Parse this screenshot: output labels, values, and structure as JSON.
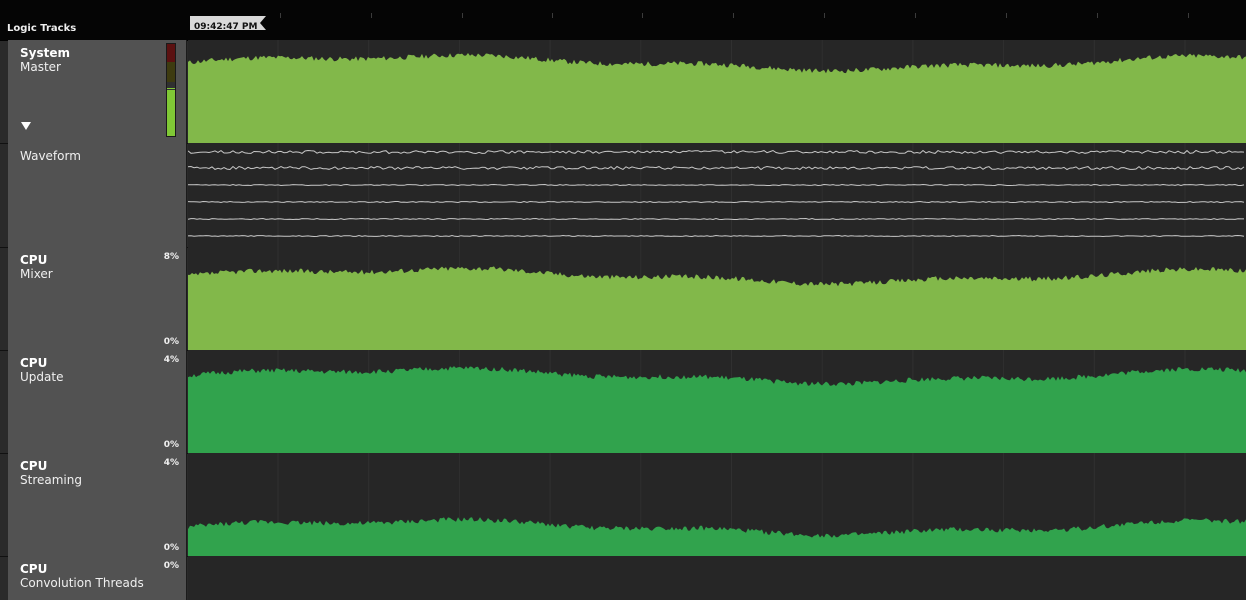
{
  "header": {
    "label": "Logic Tracks"
  },
  "playhead": {
    "time": "09:42:47 PM"
  },
  "tracks": [
    {
      "id": "master",
      "title": "System",
      "subtitle": "Master",
      "kind": "area",
      "color": "#82b84a"
    },
    {
      "id": "waveform",
      "title": "",
      "subtitle": "Waveform",
      "kind": "waveform",
      "color": "#c8c8c8"
    },
    {
      "id": "mixer",
      "title": "CPU",
      "subtitle": "Mixer",
      "scale_max": "8%",
      "scale_min": "0%",
      "kind": "area",
      "color": "#82b84a",
      "level": 0.72
    },
    {
      "id": "update",
      "title": "CPU",
      "subtitle": "Update",
      "scale_max": "4%",
      "scale_min": "0%",
      "kind": "area",
      "color": "#31a34d",
      "level": 0.75
    },
    {
      "id": "streaming",
      "title": "CPU",
      "subtitle": "Streaming",
      "scale_max": "4%",
      "scale_min": "0%",
      "kind": "area",
      "color": "#31a34d",
      "level": 0.28
    },
    {
      "id": "convolution",
      "title": "CPU",
      "subtitle": "Convolution Threads",
      "scale_max": "0%",
      "kind": "empty"
    }
  ],
  "master_meter": {
    "level": 0.5
  },
  "icons": {
    "collapse": "triangle-down-icon"
  }
}
